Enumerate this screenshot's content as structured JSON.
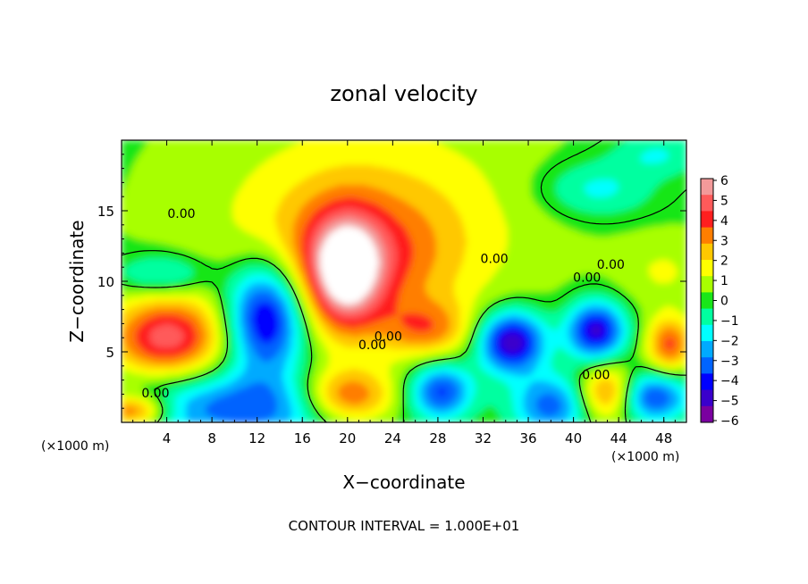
{
  "chart_data": {
    "type": "heatmap",
    "title": "zonal velocity",
    "xlabel": "X−coordinate",
    "ylabel": "Z−coordinate",
    "x_unit": "(×1000 m)",
    "x_unit_right": "(×1000 m)",
    "xlim": [
      0,
      50
    ],
    "ylim": [
      0,
      20
    ],
    "x_ticks": [
      4,
      8,
      12,
      16,
      20,
      24,
      28,
      32,
      36,
      40,
      44,
      48
    ],
    "y_ticks": [
      5,
      10,
      15
    ],
    "colorbar": {
      "ticks": [
        "6",
        "5",
        "4",
        "3",
        "2",
        "1",
        "0",
        "−1",
        "−2",
        "−3",
        "−4",
        "−5",
        "−6"
      ],
      "range": [
        -6,
        6
      ],
      "colors": [
        "#f39a9a",
        "#ff5a5a",
        "#ff1f1f",
        "#ff7e00",
        "#ffc800",
        "#ffff00",
        "#a8ff00",
        "#19e619",
        "#00ffa0",
        "#00ffff",
        "#00aaff",
        "#0064ff",
        "#0000ff",
        "#3a00cc",
        "#7a00a0"
      ]
    },
    "contour_labels": [
      {
        "text": "0.00",
        "x": 5.3,
        "z": 14.8
      },
      {
        "text": "0.00",
        "x": 33.0,
        "z": 11.6
      },
      {
        "text": "0.00",
        "x": 41.2,
        "z": 10.3
      },
      {
        "text": "0.00",
        "x": 43.3,
        "z": 11.2
      },
      {
        "text": "0.00",
        "x": 22.2,
        "z": 5.5
      },
      {
        "text": "0.00",
        "x": 23.6,
        "z": 6.1
      },
      {
        "text": "0.00",
        "x": 42.0,
        "z": 3.4
      },
      {
        "text": "0.00",
        "x": 3.0,
        "z": 2.1
      }
    ],
    "blobs": [
      {
        "x": 22,
        "z": 14.5,
        "rx": 14,
        "rz": 7.5,
        "v": 1.8
      },
      {
        "x": 21,
        "z": 11.5,
        "rx": 8,
        "rz": 4.5,
        "v": 2.5
      },
      {
        "x": 19.8,
        "z": 10.5,
        "rx": 3.2,
        "rz": 4,
        "v": 4.5
      },
      {
        "x": 27,
        "z": 6.6,
        "rx": 4,
        "rz": 2,
        "v": 2.5
      },
      {
        "x": 4,
        "z": 6,
        "rx": 5,
        "rz": 2.8,
        "v": 4.5
      },
      {
        "x": 12.8,
        "z": 7.5,
        "rx": 3.5,
        "rz": 4,
        "v": -5.5
      },
      {
        "x": 10.5,
        "z": 1,
        "rx": 10,
        "rz": 2.5,
        "v": -3.5
      },
      {
        "x": 20,
        "z": 1.8,
        "rx": 4.2,
        "rz": 2,
        "v": 4
      },
      {
        "x": 34.5,
        "z": 5.7,
        "rx": 3,
        "rz": 2.2,
        "v": -5.5
      },
      {
        "x": 42,
        "z": 6.5,
        "rx": 2.6,
        "rz": 2.1,
        "v": -5
      },
      {
        "x": 38,
        "z": 1.2,
        "rx": 3.5,
        "rz": 2.2,
        "v": -3.5
      },
      {
        "x": 48.5,
        "z": 5.5,
        "rx": 2,
        "rz": 2,
        "v": 3.5
      },
      {
        "x": 47,
        "z": 1.8,
        "rx": 3.2,
        "rz": 1.8,
        "v": -4
      },
      {
        "x": 43,
        "z": 2.1,
        "rx": 2.6,
        "rz": 2,
        "v": 3.5
      },
      {
        "x": 28.3,
        "z": 2.2,
        "rx": 2.8,
        "rz": 2,
        "v": -4
      },
      {
        "x": 3.7,
        "z": 10.5,
        "rx": 4,
        "rz": 1.4,
        "v": -2
      },
      {
        "x": 42,
        "z": 16.5,
        "rx": 5,
        "rz": 2,
        "v": -1.8
      },
      {
        "x": 47.5,
        "z": 19,
        "rx": 4,
        "rz": 1.5,
        "v": -1.5
      },
      {
        "x": 48,
        "z": 10.7,
        "rx": 4,
        "rz": 2.5,
        "v": 1
      },
      {
        "x": 1,
        "z": 0.8,
        "rx": 3,
        "rz": 1.2,
        "v": 4
      }
    ]
  },
  "footer_text": "CONTOUR INTERVAL = 1.000E+01"
}
